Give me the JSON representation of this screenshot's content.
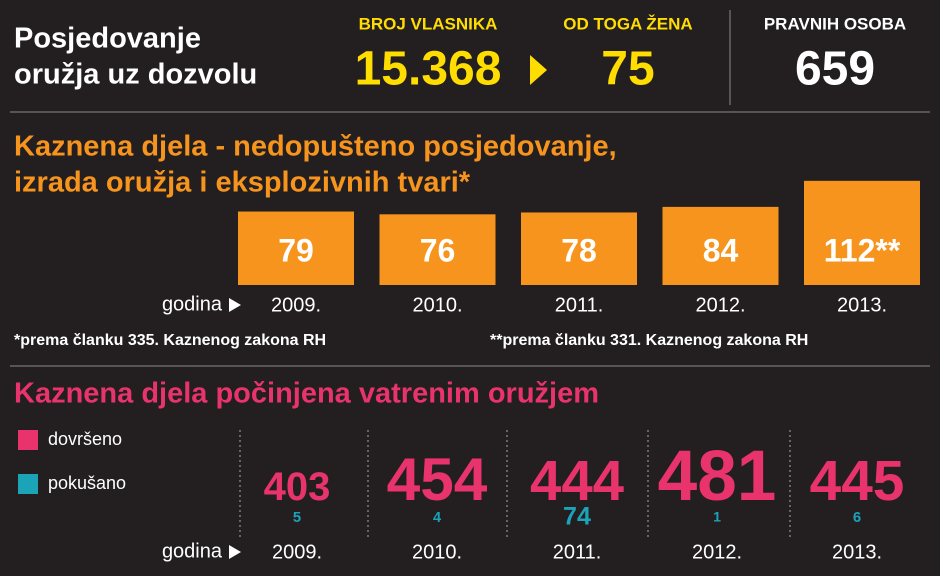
{
  "header": {
    "title": [
      "Posjedovanje",
      "oružja uz dozvolu"
    ],
    "stats": [
      {
        "label": "BROJ VLASNIKA",
        "value": "15.368"
      },
      {
        "label": "OD TOGA ŽENA",
        "value": "75"
      },
      {
        "label": "PRAVNIH OSOBA",
        "value": "659"
      }
    ]
  },
  "chart_data": [
    {
      "type": "bar",
      "title": [
        "Kaznena djela - nedopušteno posjedovanje,",
        "izrada oružja i eksplozivnih tvari*"
      ],
      "x_label": "godina",
      "categories": [
        "2009.",
        "2010.",
        "2011.",
        "2012.",
        "2013."
      ],
      "values": [
        79,
        76,
        78,
        84,
        112
      ],
      "value_labels": [
        "79",
        "76",
        "78",
        "84",
        "112**"
      ],
      "color": "#f7941d",
      "notes": [
        "*prema članku 335. Kaznenog zakona RH",
        "**prema članku 331. Kaznenog zakona RH"
      ]
    },
    {
      "type": "sized-number",
      "title": "Kaznena djela počinjena vatrenim oružjem",
      "x_label": "godina",
      "categories": [
        "2009.",
        "2010.",
        "2011.",
        "2012.",
        "2013."
      ],
      "series": [
        {
          "name": "dovršeno",
          "color": "#e8336d",
          "values": [
            403,
            454,
            444,
            481,
            445
          ]
        },
        {
          "name": "pokušano",
          "color": "#1ba3b8",
          "values": [
            5,
            4,
            74,
            1,
            6
          ]
        }
      ]
    }
  ]
}
